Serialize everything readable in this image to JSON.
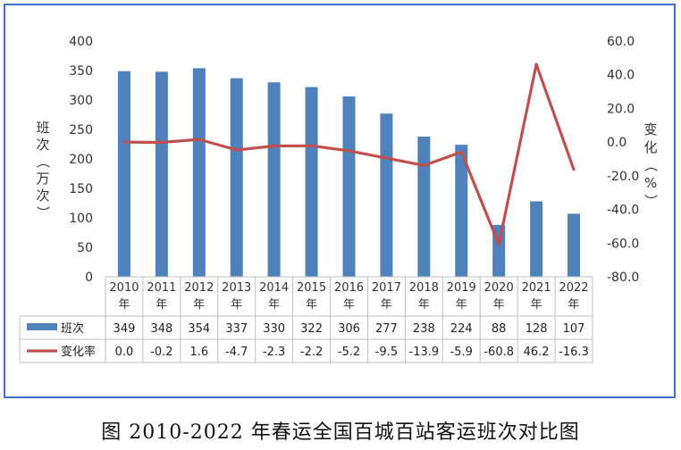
{
  "caption": "图   2010-2022 年春运全国百城百站客运班次对比图",
  "chart_data": {
    "type": "bar",
    "categories": [
      "2010年",
      "2011年",
      "2012年",
      "2013年",
      "2014年",
      "2015年",
      "2016年",
      "2017年",
      "2018年",
      "2019年",
      "2020年",
      "2021年",
      "2022年"
    ],
    "category_years": [
      "2010",
      "2011",
      "2012",
      "2013",
      "2014",
      "2015",
      "2016",
      "2017",
      "2018",
      "2019",
      "2020",
      "2021",
      "2022"
    ],
    "category_suffix": "年",
    "series": [
      {
        "name": "班次",
        "type": "bar",
        "axis": "left",
        "color": "#4f81bd",
        "values": [
          349,
          348,
          354,
          337,
          330,
          322,
          306,
          277,
          238,
          224,
          88,
          128,
          107
        ]
      },
      {
        "name": "变化率",
        "type": "line",
        "axis": "right",
        "color": "#c0504d",
        "values": [
          0.0,
          -0.2,
          1.6,
          -4.7,
          -2.3,
          -2.2,
          -5.2,
          -9.5,
          -13.9,
          -5.9,
          -60.8,
          46.2,
          -16.3
        ]
      }
    ],
    "value_labels": {
      "bars": [
        "349",
        "348",
        "354",
        "337",
        "330",
        "322",
        "306",
        "277",
        "238",
        "224",
        "88",
        "128",
        "107"
      ],
      "line": [
        "0.0",
        "-0.2",
        "1.6",
        "-4.7",
        "-2.3",
        "-2.2",
        "-5.2",
        "-9.5",
        "-13.9",
        "-5.9",
        "-60.8",
        "46.2",
        "-16.3"
      ]
    },
    "ylabel": "班次（万次）",
    "y2label": "变化（%）",
    "ylim": [
      0,
      400
    ],
    "y2lim": [
      -80,
      60
    ],
    "yticks": [
      "0",
      "50",
      "100",
      "150",
      "200",
      "250",
      "300",
      "350",
      "400"
    ],
    "y2ticks": [
      "-80.0",
      "-60.0",
      "-40.0",
      "-20.0",
      "0.0",
      "20.0",
      "40.0",
      "60.0"
    ],
    "grid": false,
    "legend": "data table, left column"
  }
}
